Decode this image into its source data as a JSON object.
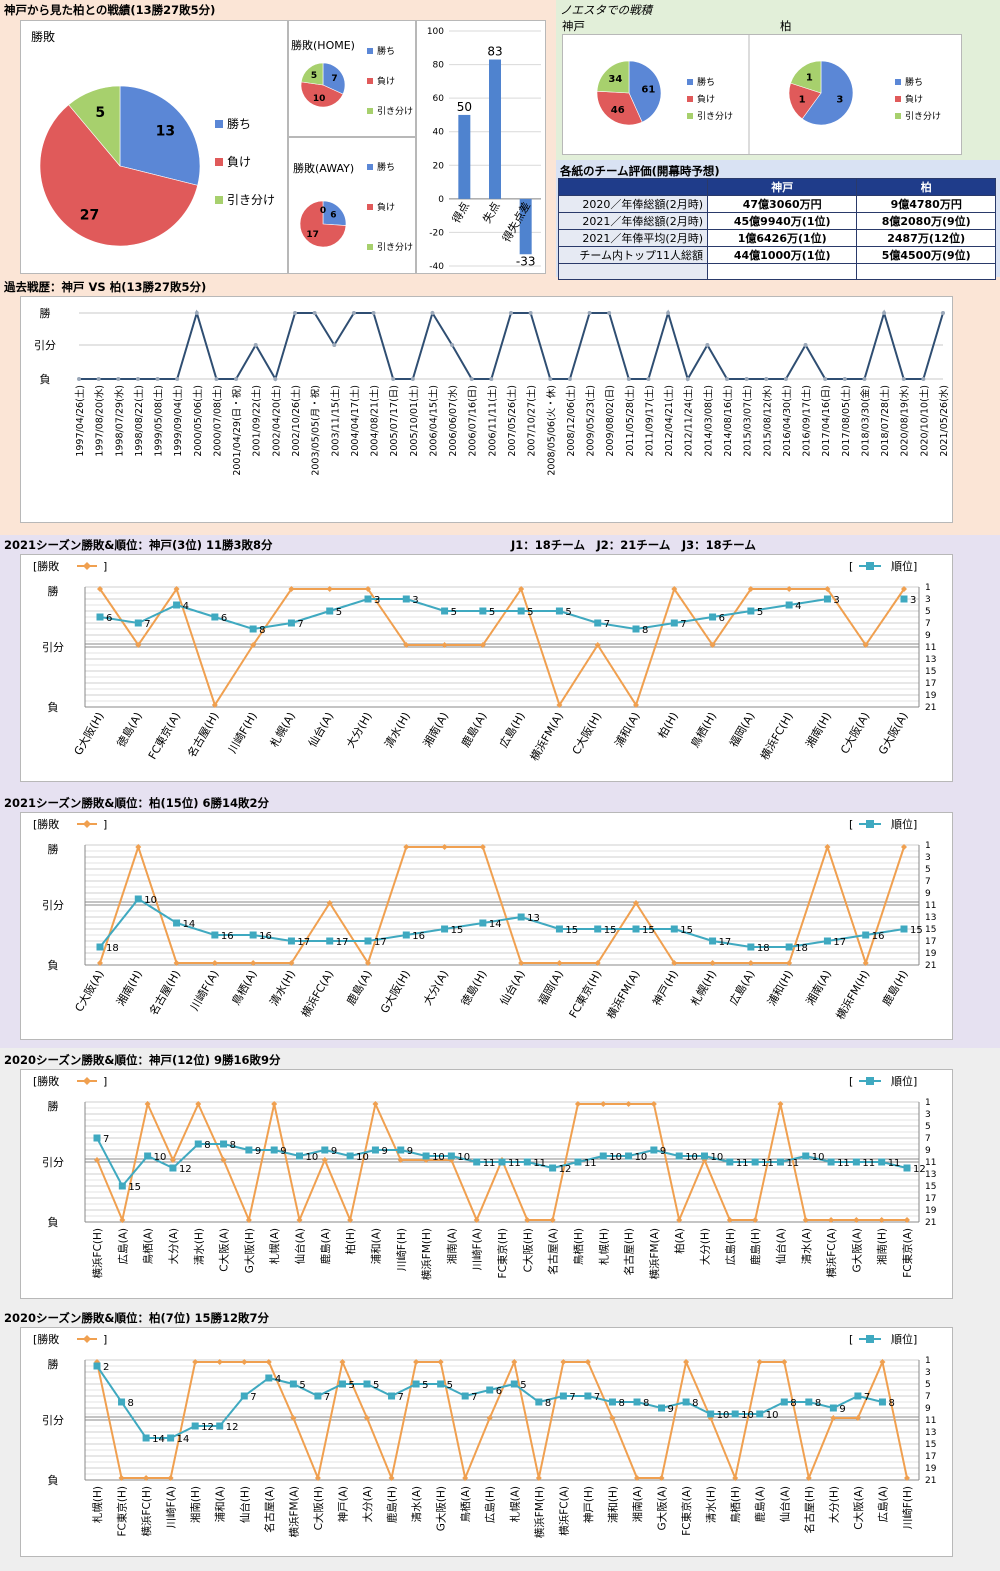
{
  "colors": {
    "win": "#5b87d6",
    "lose": "#e05a5a",
    "draw": "#a7d06d",
    "bar": "#4f83cf",
    "wl": "#f0a050",
    "rank": "#3fa9c0",
    "hist": "#2f4e72",
    "band_top": "#fbe5d6",
    "band_mid": "#e6e1f1",
    "band_low": "#eeeeee",
    "band_noe": "#e2efd9",
    "band_eval": "#d9e2f3"
  },
  "summary": {
    "title": "神戸から見た柏との戦績(13勝27敗5分)",
    "legend": [
      "勝ち",
      "負け",
      "引き分け"
    ],
    "total": {
      "title": "勝敗",
      "values": [
        13,
        27,
        5
      ]
    },
    "home": {
      "title": "勝敗(HOME)",
      "values": [
        7,
        10,
        5
      ]
    },
    "away": {
      "title": "勝敗(AWAY)",
      "values": [
        6,
        17,
        0
      ]
    },
    "goals": {
      "categories": [
        "得点",
        "失点",
        "得失点差"
      ],
      "values": [
        50,
        83,
        -33
      ],
      "ylim": [
        -40,
        100
      ],
      "ticks": [
        "100",
        "80",
        "60",
        "40",
        "20",
        "0",
        "-20",
        "-40"
      ]
    }
  },
  "noesta": {
    "title": "ノエスタでの戦積",
    "kobe": {
      "title": "神戸",
      "values": [
        61,
        46,
        34
      ]
    },
    "kashiwa": {
      "title": "柏",
      "values": [
        3,
        1,
        1
      ]
    }
  },
  "evaluation": {
    "title": "各紙のチーム評価(開幕時予想)",
    "headers": [
      "神戸",
      "柏"
    ],
    "rows": [
      {
        "label": "2020／年俸総額(2月時)",
        "kobe": "47億3060万円",
        "kashiwa": "9億4780万円"
      },
      {
        "label": "2021／年俸総額(2月時)",
        "kobe": "45億9940万(1位)",
        "kashiwa": "8億2080万(9位)"
      },
      {
        "label": "2021／年俸平均(2月時)",
        "kobe": "1億6426万(1位)",
        "kashiwa": "2487万(12位)"
      },
      {
        "label": "チーム内トップ11人総額",
        "kobe": "44億1000万(1位)",
        "kashiwa": "5億4500万(9位)"
      },
      {
        "label": "",
        "kobe": "",
        "kashiwa": ""
      }
    ]
  },
  "history": {
    "title": "過去戦歴：神戸 VS 柏(13勝27敗5分)",
    "y_labels": [
      "勝",
      "引分",
      "負"
    ],
    "dates": [
      "1997/04/26(土)",
      "1997/08/20(水)",
      "1998/07/29(水)",
      "1998/08/22(土)",
      "1999/05/08(土)",
      "1999/09/04(土)",
      "2000/05/06(土)",
      "2000/07/08(土)",
      "2001/04/29(日・祝)",
      "2001/09/22(土)",
      "2002/04/20(土)",
      "2002/10/26(土)",
      "2003/05/05(月・祝)",
      "2003/11/15(土)",
      "2004/04/17(土)",
      "2004/08/21(土)",
      "2005/07/17(日)",
      "2005/10/01(土)",
      "2006/04/15(土)",
      "2006/06/07(水)",
      "2006/07/16(日)",
      "2006/11/11(土)",
      "2007/05/26(土)",
      "2007/10/27(土)",
      "2008/05/06(火・休)",
      "2008/12/06(土)",
      "2009/05/23(土)",
      "2009/08/02(日)",
      "2011/05/28(土)",
      "2011/09/17(土)",
      "2012/04/21(土)",
      "2012/11/24(土)",
      "2014/03/08(土)",
      "2014/08/16(土)",
      "2015/03/07(土)",
      "2015/08/12(水)",
      "2016/04/30(土)",
      "2016/09/17(土)",
      "2017/04/16(日)",
      "2017/08/05(土)",
      "2018/03/30(金)",
      "2018/07/28(土)",
      "2020/08/19(水)",
      "2020/10/10(土)",
      "2021/05/26(水)"
    ],
    "results": [
      0,
      0,
      0,
      0,
      0,
      0,
      2,
      0,
      0,
      1,
      0,
      2,
      2,
      1,
      2,
      2,
      0,
      0,
      2,
      1,
      0,
      0,
      2,
      2,
      0,
      0,
      2,
      2,
      0,
      0,
      2,
      0,
      1,
      0,
      0,
      0,
      0,
      1,
      0,
      0,
      0,
      2,
      0,
      0,
      2
    ]
  },
  "range_note": "J1：18チーム　J2：21チーム　J3：18チーム",
  "seasons": [
    {
      "title": "2021シーズン勝敗&順位：神戸(3位) 11勝3敗8分",
      "wl_legend": "勝敗",
      "rank_legend": "順位",
      "y_labels": [
        "勝",
        "引分",
        "負"
      ],
      "rank_ticks": [
        "1",
        "3",
        "5",
        "7",
        "9",
        "11",
        "13",
        "15",
        "17",
        "19",
        "21"
      ],
      "opponents": [
        "G大阪(H)",
        "徳島(A)",
        "FC東京(A)",
        "名古屋(H)",
        "川崎F(H)",
        "札幌(A)",
        "仙台(A)",
        "大分(H)",
        "清水(H)",
        "湘南(A)",
        "鹿島(A)",
        "広島(H)",
        "横浜FM(A)",
        "C大阪(H)",
        "浦和(A)",
        "柏(H)",
        "鳥栖(H)",
        "福岡(A)",
        "横浜FC(H)",
        "湘南(H)",
        "C大阪(A)",
        "G大阪(A)"
      ],
      "results": [
        2,
        1,
        2,
        0,
        1,
        2,
        2,
        2,
        1,
        1,
        1,
        2,
        0,
        1,
        0,
        2,
        1,
        2,
        2,
        2,
        1,
        2
      ],
      "ranks": [
        6,
        7,
        4,
        6,
        8,
        7,
        5,
        3,
        3,
        5,
        5,
        5,
        5,
        7,
        8,
        7,
        6,
        5,
        4,
        3,
        null,
        3
      ]
    },
    {
      "title": "2021シーズン勝敗&順位：柏(15位) 6勝14敗2分",
      "wl_legend": "勝敗",
      "rank_legend": "順位",
      "y_labels": [
        "勝",
        "引分",
        "負"
      ],
      "rank_ticks": [
        "1",
        "3",
        "5",
        "7",
        "9",
        "11",
        "13",
        "15",
        "17",
        "19",
        "21"
      ],
      "opponents": [
        "C大阪(A)",
        "湘南(H)",
        "名古屋(H)",
        "川崎F(A)",
        "鳥栖(A)",
        "清水(H)",
        "横浜FC(A)",
        "鹿島(A)",
        "G大阪(H)",
        "大分(A)",
        "徳島(H)",
        "仙台(A)",
        "福岡(A)",
        "FC東京(H)",
        "横浜FM(A)",
        "神戸(H)",
        "札幌(H)",
        "広島(A)",
        "浦和(H)",
        "湘南(A)",
        "横浜FM(H)",
        "鹿島(H)"
      ],
      "results": [
        0,
        2,
        0,
        0,
        0,
        0,
        1,
        0,
        2,
        2,
        2,
        0,
        0,
        0,
        1,
        0,
        0,
        0,
        0,
        2,
        0,
        2
      ],
      "ranks": [
        18,
        10,
        14,
        16,
        16,
        17,
        17,
        17,
        16,
        15,
        14,
        13,
        15,
        15,
        15,
        15,
        17,
        18,
        18,
        17,
        16,
        15
      ]
    },
    {
      "title": "2020シーズン勝敗&順位：神戸(12位) 9勝16敗9分",
      "wl_legend": "勝敗",
      "rank_legend": "順位",
      "y_labels": [
        "勝",
        "引分",
        "負"
      ],
      "rank_ticks": [
        "1",
        "3",
        "5",
        "7",
        "9",
        "11",
        "13",
        "15",
        "17",
        "19",
        "21"
      ],
      "opponents": [
        "横浜FC(H)",
        "広島(A)",
        "鳥栖(A)",
        "大分(A)",
        "清水(H)",
        "C大阪(A)",
        "G大阪(H)",
        "札幌(A)",
        "仙台(A)",
        "鹿島(A)",
        "柏(H)",
        "浦和(A)",
        "川崎F(H)",
        "横浜FM(H)",
        "湘南(A)",
        "川崎F(A)",
        "FC東京(H)",
        "C大阪(H)",
        "名古屋(A)",
        "鳥栖(H)",
        "札幌(H)",
        "名古屋(H)",
        "横浜FM(A)",
        "柏(A)",
        "大分(H)",
        "広島(H)",
        "鹿島(H)",
        "仙台(A)",
        "清水(A)",
        "横浜FC(A)",
        "G大阪(A)",
        "湘南(H)",
        "FC東京(A)"
      ],
      "results": [
        1,
        0,
        2,
        1,
        2,
        1,
        0,
        2,
        0,
        1,
        0,
        2,
        1,
        1,
        1,
        0,
        1,
        0,
        0,
        2,
        2,
        2,
        2,
        0,
        1,
        0,
        0,
        2,
        0,
        0,
        0,
        0,
        0
      ],
      "ranks": [
        7,
        15,
        10,
        12,
        8,
        8,
        9,
        9,
        10,
        9,
        10,
        9,
        9,
        10,
        10,
        11,
        11,
        11,
        12,
        11,
        10,
        10,
        9,
        10,
        10,
        11,
        11,
        11,
        10,
        11,
        11,
        11,
        12
      ]
    },
    {
      "title": "2020シーズン勝敗&順位：柏(7位) 15勝12敗7分",
      "wl_legend": "勝敗",
      "rank_legend": "順位",
      "y_labels": [
        "勝",
        "引分",
        "負"
      ],
      "rank_ticks": [
        "1",
        "3",
        "5",
        "7",
        "9",
        "11",
        "13",
        "15",
        "17",
        "19",
        "21"
      ],
      "opponents": [
        "札幌(H)",
        "FC東京(H)",
        "横浜FC(H)",
        "川崎F(A)",
        "湘南(H)",
        "浦和(A)",
        "仙台(H)",
        "名古屋(A)",
        "横浜FM(A)",
        "C大阪(H)",
        "神戸(A)",
        "大分(A)",
        "鹿島(H)",
        "清水(A)",
        "G大阪(H)",
        "鳥栖(A)",
        "広島(H)",
        "札幌(A)",
        "横浜FM(H)",
        "横浜FC(A)",
        "神戸(H)",
        "浦和(H)",
        "湘南(A)",
        "G大阪(A)",
        "FC東京(A)",
        "清水(H)",
        "鳥栖(H)",
        "鹿島(A)",
        "仙台(A)",
        "名古屋(H)",
        "大分(H)",
        "C大阪(A)",
        "広島(A)",
        "川崎F(H)"
      ],
      "results": [
        2,
        0,
        0,
        0,
        2,
        2,
        2,
        2,
        1,
        0,
        2,
        1,
        0,
        2,
        2,
        0,
        1,
        2,
        0,
        2,
        2,
        1,
        0,
        0,
        2,
        1,
        0,
        2,
        2,
        0,
        1,
        1,
        2,
        0
      ],
      "ranks": [
        2,
        8,
        14,
        14,
        12,
        12,
        7,
        4,
        5,
        7,
        5,
        5,
        7,
        5,
        5,
        7,
        6,
        5,
        8,
        7,
        7,
        8,
        8,
        9,
        8,
        10,
        10,
        10,
        8,
        8,
        9,
        7,
        8,
        null
      ]
    }
  ]
}
